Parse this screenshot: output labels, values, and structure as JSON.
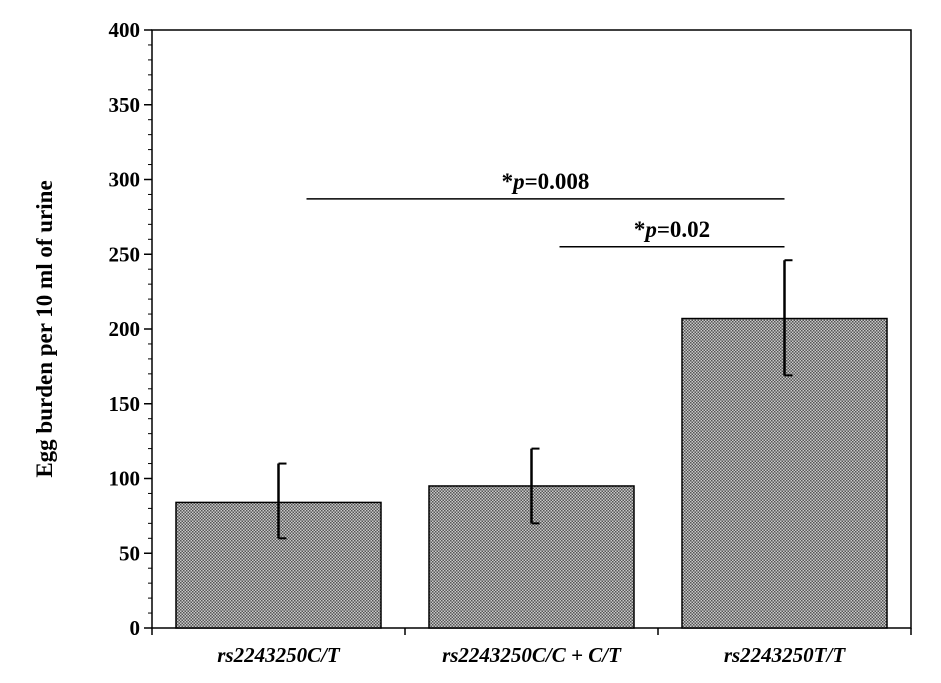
{
  "chart_data": {
    "type": "bar",
    "title": "",
    "xlabel": "",
    "ylabel": "Egg burden per 10 ml of urine",
    "ylim": [
      0,
      400
    ],
    "yticks": [
      0,
      50,
      100,
      150,
      200,
      250,
      300,
      350,
      400
    ],
    "categories": [
      "rs2243250C/T",
      "rs2243250C/C + C/T",
      "rs2243250T/T"
    ],
    "values": [
      84,
      95,
      207
    ],
    "error_low": [
      60,
      70,
      169
    ],
    "error_high": [
      110,
      120,
      246
    ],
    "bar_fill": "#9a9a9a",
    "grid": false,
    "legend": "none",
    "annotations": [
      {
        "prefix": "*",
        "p": "p",
        "suffix": "=0.008",
        "from": 0,
        "to": 2,
        "y": 287
      },
      {
        "prefix": "*",
        "p": "p",
        "suffix": "=0.02",
        "from": 1,
        "to": 2,
        "y": 255
      }
    ]
  }
}
